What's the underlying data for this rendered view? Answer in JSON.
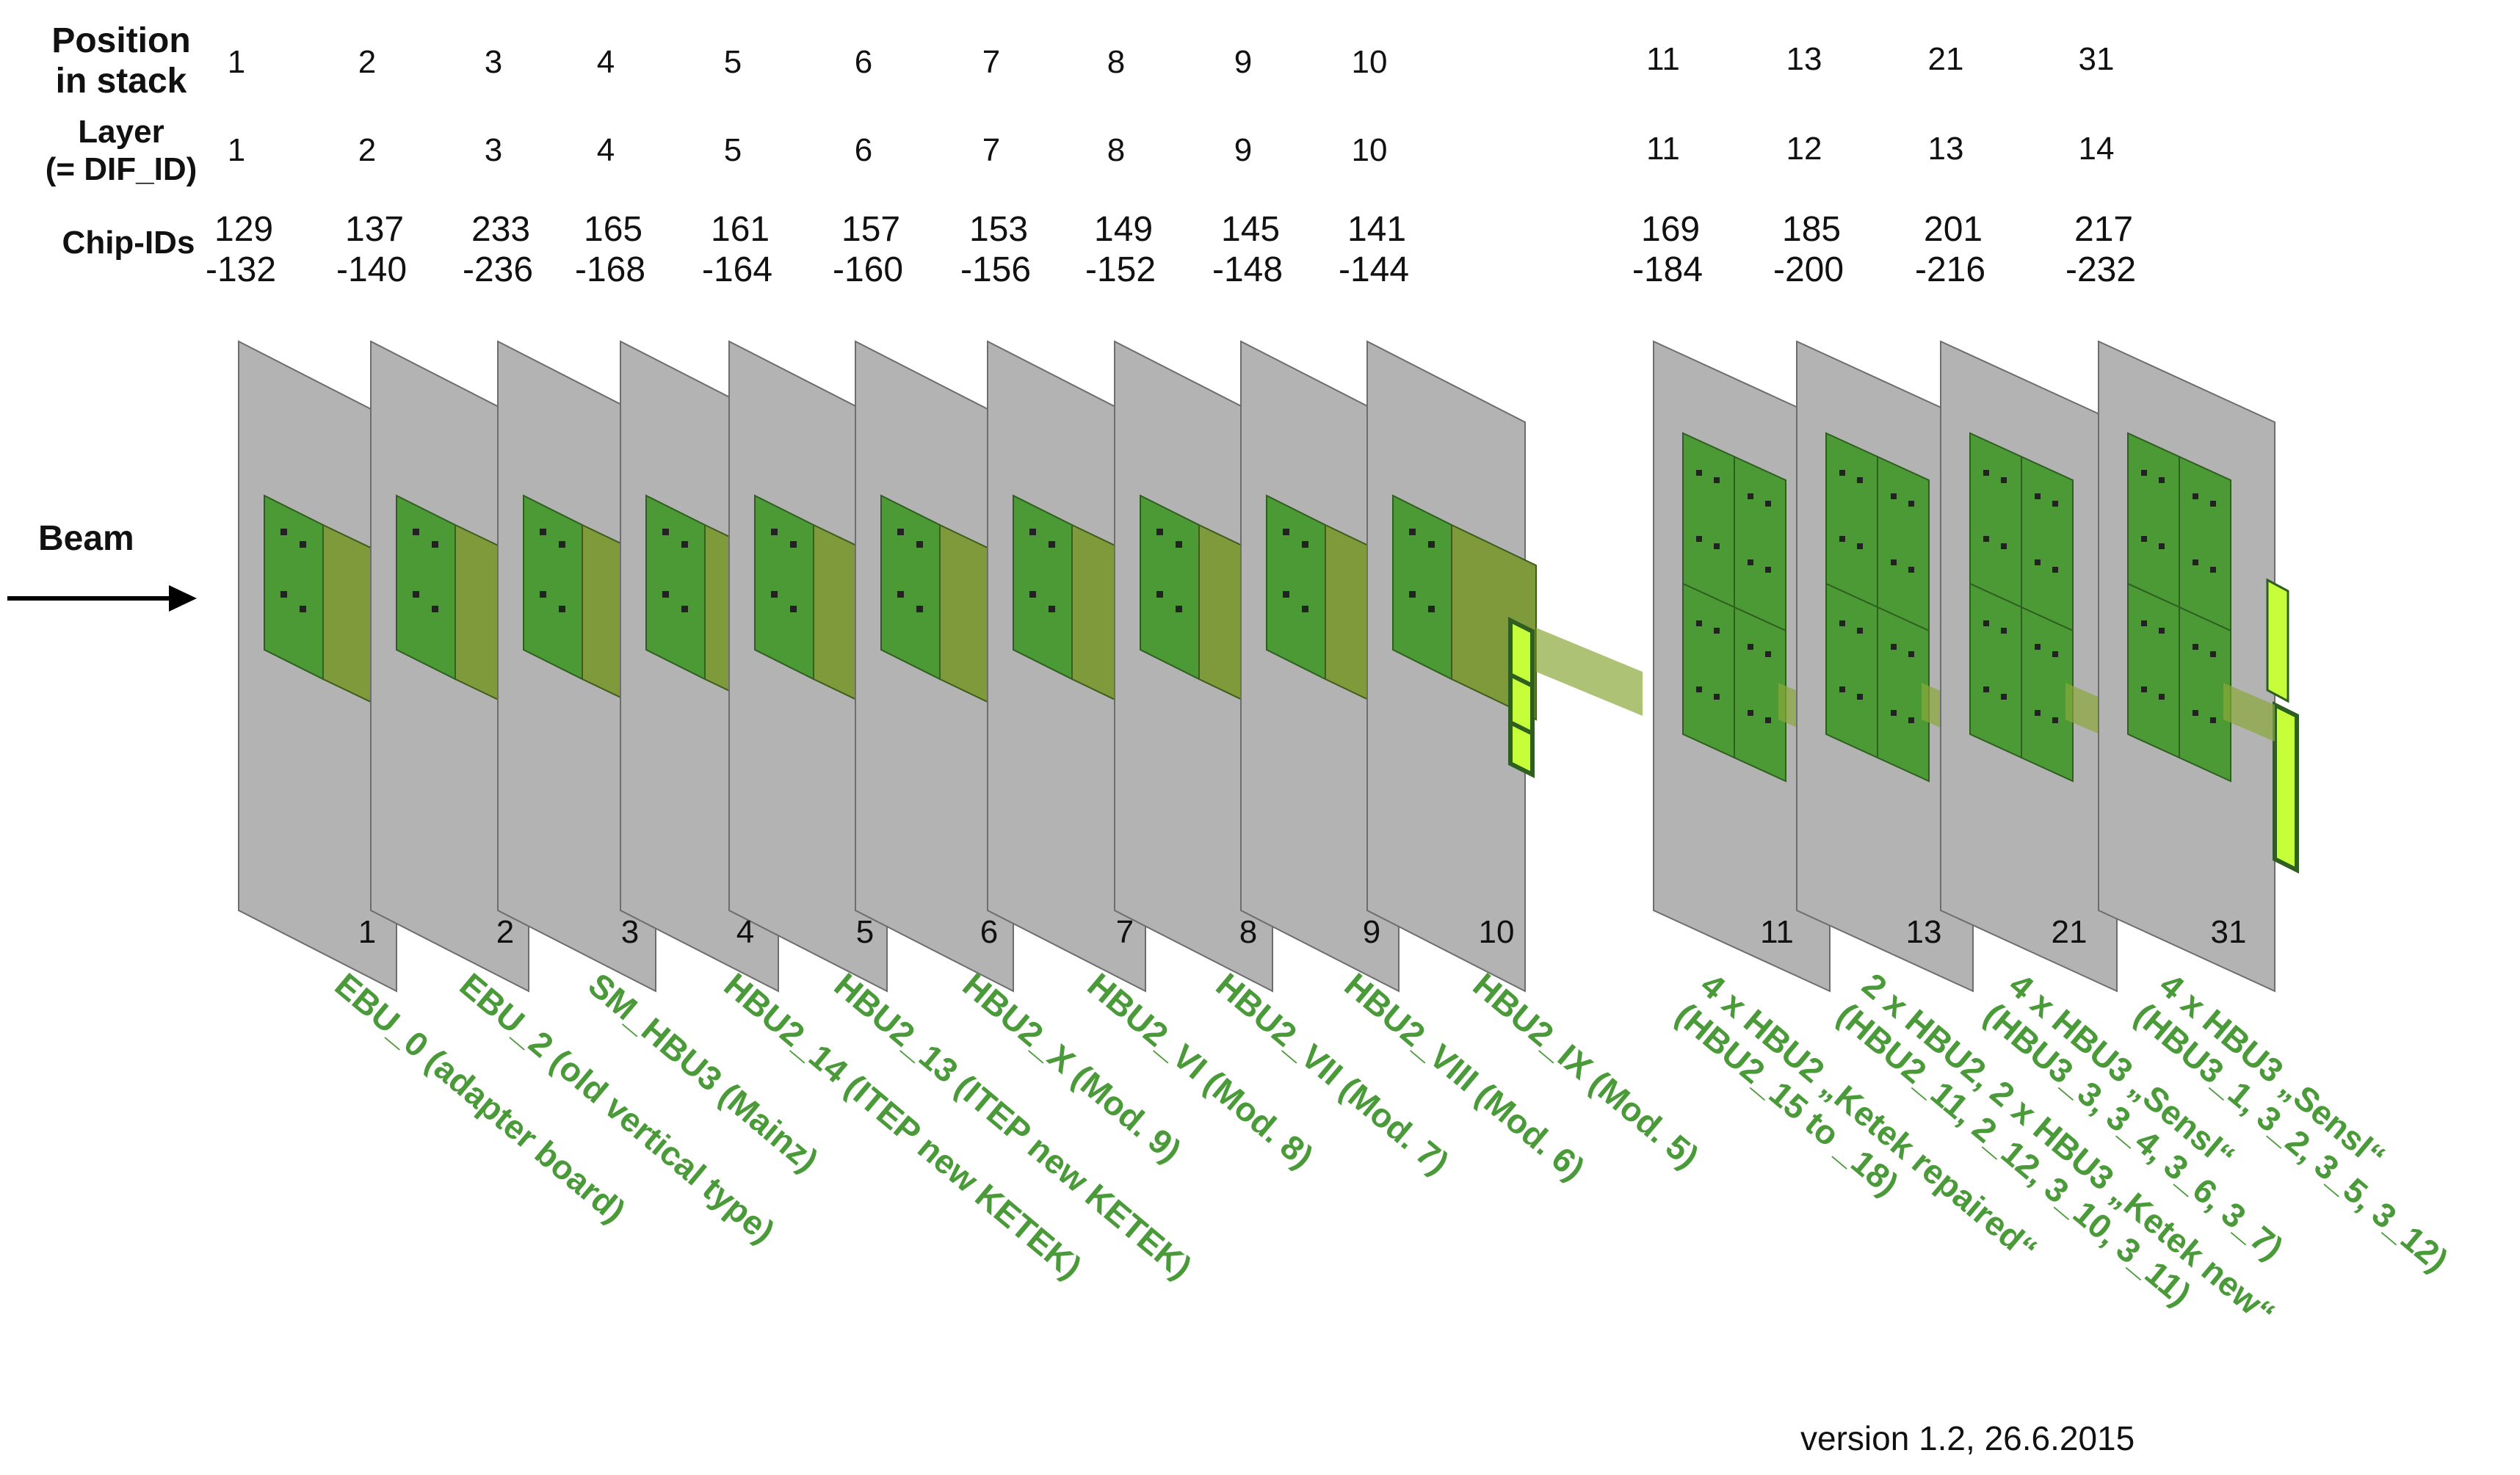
{
  "headers": {
    "position": "Position\nin stack",
    "layer": "Layer\n(= DIF_ID)",
    "chip_ids": "Chip-IDs"
  },
  "beam_label": "Beam",
  "columns": [
    {
      "position": "1",
      "layer": "1",
      "chip_top": "129",
      "chip_bottom": "-132",
      "plane_number": "1",
      "module": "EBU_0 (adapter board)"
    },
    {
      "position": "2",
      "layer": "2",
      "chip_top": "137",
      "chip_bottom": "-140",
      "plane_number": "2",
      "module": "EBU_2 (old vertical type)"
    },
    {
      "position": "3",
      "layer": "3",
      "chip_top": "233",
      "chip_bottom": "-236",
      "plane_number": "3",
      "module": "SM_HBU3 (Mainz)"
    },
    {
      "position": "4",
      "layer": "4",
      "chip_top": "165",
      "chip_bottom": "-168",
      "plane_number": "4",
      "module": "HBU2_14 (ITEP new KETEK)"
    },
    {
      "position": "5",
      "layer": "5",
      "chip_top": "161",
      "chip_bottom": "-164",
      "plane_number": "5",
      "module": "HBU2_13 (ITEP new KETEK)"
    },
    {
      "position": "6",
      "layer": "6",
      "chip_top": "157",
      "chip_bottom": "-160",
      "plane_number": "6",
      "module": "HBU2_X (Mod. 9)"
    },
    {
      "position": "7",
      "layer": "7",
      "chip_top": "153",
      "chip_bottom": "-156",
      "plane_number": "7",
      "module": "HBU2_VI (Mod. 8)"
    },
    {
      "position": "8",
      "layer": "8",
      "chip_top": "149",
      "chip_bottom": "-152",
      "plane_number": "8",
      "module": "HBU2_VII (Mod. 7)"
    },
    {
      "position": "9",
      "layer": "9",
      "chip_top": "145",
      "chip_bottom": "-148",
      "plane_number": "9",
      "module": "HBU2_VIII (Mod. 6)"
    },
    {
      "position": "10",
      "layer": "10",
      "chip_top": "141",
      "chip_bottom": "-144",
      "plane_number": "10",
      "module": "HBU2_IX (Mod. 5)"
    },
    {
      "position": "11",
      "layer": "11",
      "chip_top": "169",
      "chip_bottom": "-184",
      "plane_number": "11",
      "module": "4 x HBU2 „Ketek repaired“\n(HBU2_15 to _18)"
    },
    {
      "position": "13",
      "layer": "12",
      "chip_top": "185",
      "chip_bottom": "-200",
      "plane_number": "13",
      "module": "2 x HBU2, 2 x HBU3 „Ketek new“\n(HBU2_11, 2_12, 3_10, 3_11)"
    },
    {
      "position": "21",
      "layer": "13",
      "chip_top": "201",
      "chip_bottom": "-216",
      "plane_number": "21",
      "module": "4 x HBU3 „Sensl“\n(HBU3_3, 3_4, 3_6, 3_7)"
    },
    {
      "position": "31",
      "layer": "14",
      "chip_top": "217",
      "chip_bottom": "-232",
      "plane_number": "31",
      "module": "4 x HBU3 „Sensl“\n(HBU3_1, 3_2, 3_5, 3_12)"
    }
  ],
  "version": "version 1.2, 26.6.2015",
  "colors": {
    "plane_fill": "#b3b3b3",
    "plane_stroke": "#6d6d6d",
    "board_dark": "#4c9a36",
    "board_olive": "#7e9a3a",
    "strip": "#c6ff3a",
    "label_green": "#4a9a3a"
  }
}
